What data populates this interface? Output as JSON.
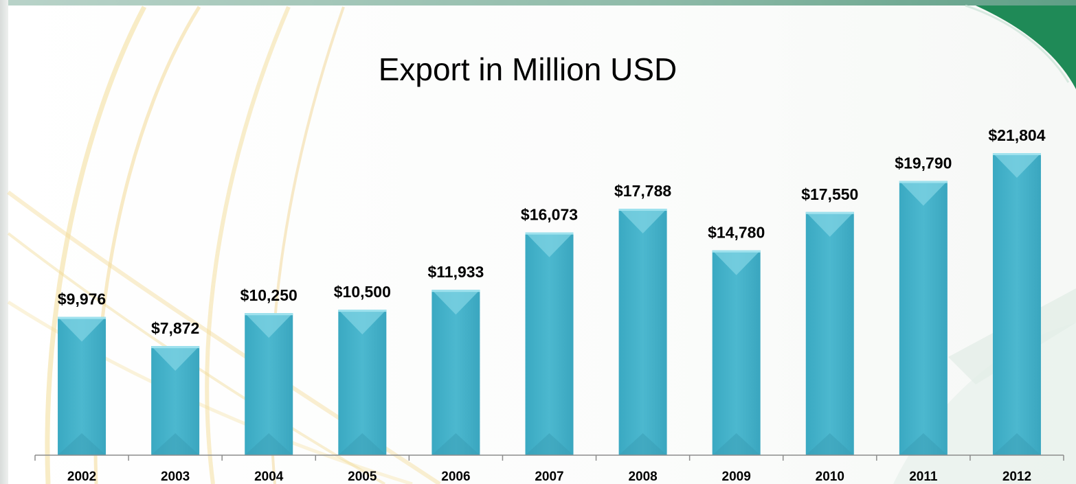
{
  "chart_data": {
    "type": "bar",
    "title": "Export in Million USD",
    "xlabel": "",
    "ylabel": "",
    "categories": [
      "2002",
      "2003",
      "2004",
      "2005",
      "2006",
      "2007",
      "2008",
      "2009",
      "2010",
      "2011",
      "2012"
    ],
    "values": [
      9976,
      7872,
      10250,
      10500,
      11933,
      16073,
      17788,
      14780,
      17550,
      19790,
      21804
    ],
    "value_labels": [
      "$9,976",
      "$7,872",
      "$10,250",
      "$10,500",
      "$11,933",
      "$16,073",
      "$17,788",
      "$14,780",
      "$17,550",
      "$19,790",
      "$21,804"
    ],
    "ylim": [
      0,
      21804
    ],
    "grid": false,
    "legend": "none",
    "colors": {
      "bar": "#4cb8cf",
      "bar_top": "#7fd3e3",
      "axis": "#8c8c8c",
      "text": "#000000",
      "accent_green": "#1f8a57"
    }
  }
}
